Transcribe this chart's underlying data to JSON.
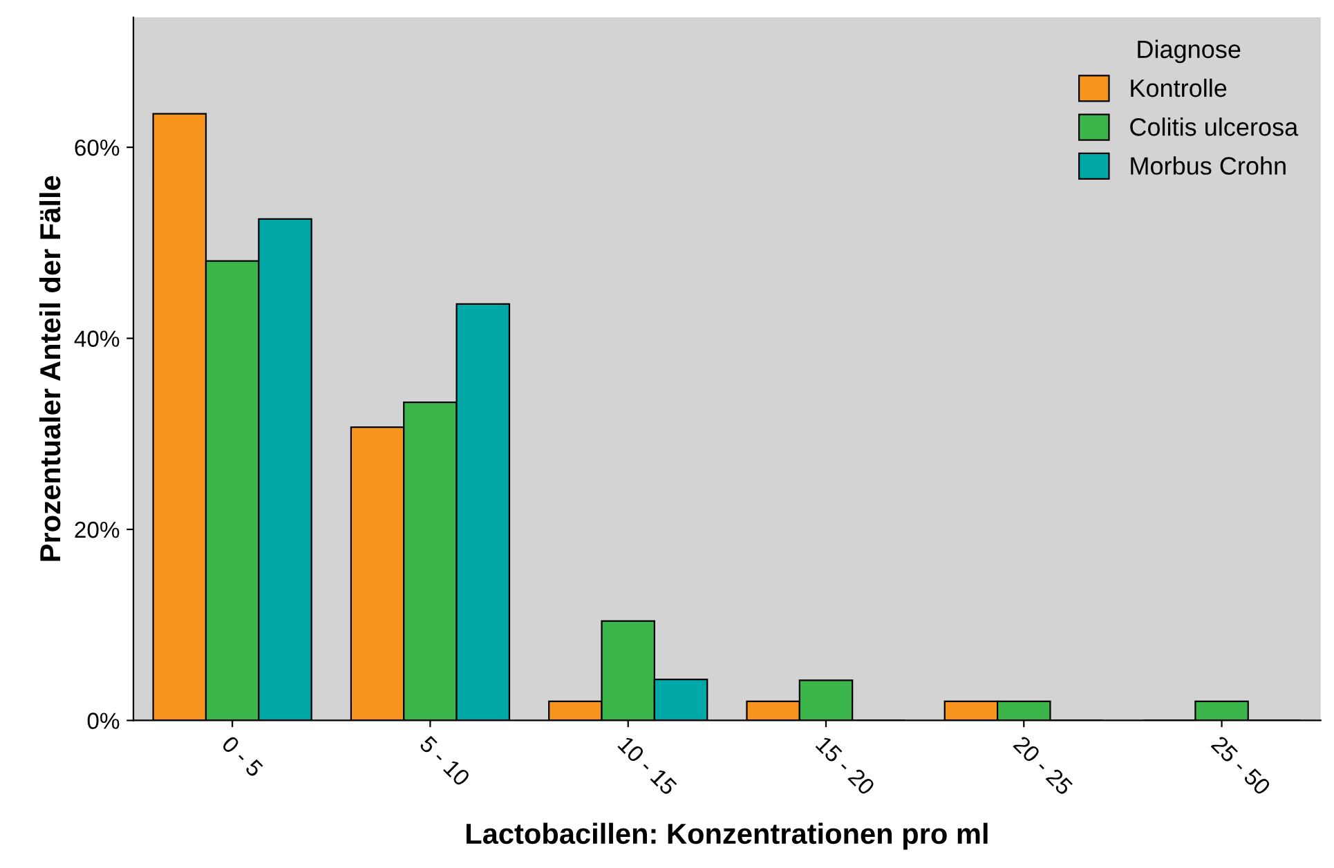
{
  "chart_data": {
    "type": "bar",
    "xlabel": "Lactobacillen: Konzentrationen pro ml",
    "ylabel": "Prozentualer Anteil der Fälle",
    "legend_title": "Diagnose",
    "categories": [
      "0 - 5",
      "5 - 10",
      "10 - 15",
      "15 - 20",
      "20 - 25",
      "25 - 50"
    ],
    "series": [
      {
        "name": "Kontrolle",
        "color": "#f7941d",
        "values": [
          63.5,
          30.7,
          2.0,
          2.0,
          2.0,
          0
        ]
      },
      {
        "name": "Colitis ulcerosa",
        "color": "#3cb54a",
        "values": [
          48.1,
          33.3,
          10.4,
          4.2,
          2.0,
          2.0
        ]
      },
      {
        "name": "Morbus Crohn",
        "color": "#00a8a8",
        "values": [
          52.5,
          43.6,
          4.3,
          0,
          0,
          0
        ]
      }
    ],
    "ylim": [
      0,
      73.6
    ],
    "yticks": [
      {
        "value": 0,
        "label": "0%"
      },
      {
        "value": 20,
        "label": "20%"
      },
      {
        "value": 40,
        "label": "40%"
      },
      {
        "value": 60,
        "label": "60%"
      }
    ],
    "grid": false,
    "legend": "top right"
  }
}
